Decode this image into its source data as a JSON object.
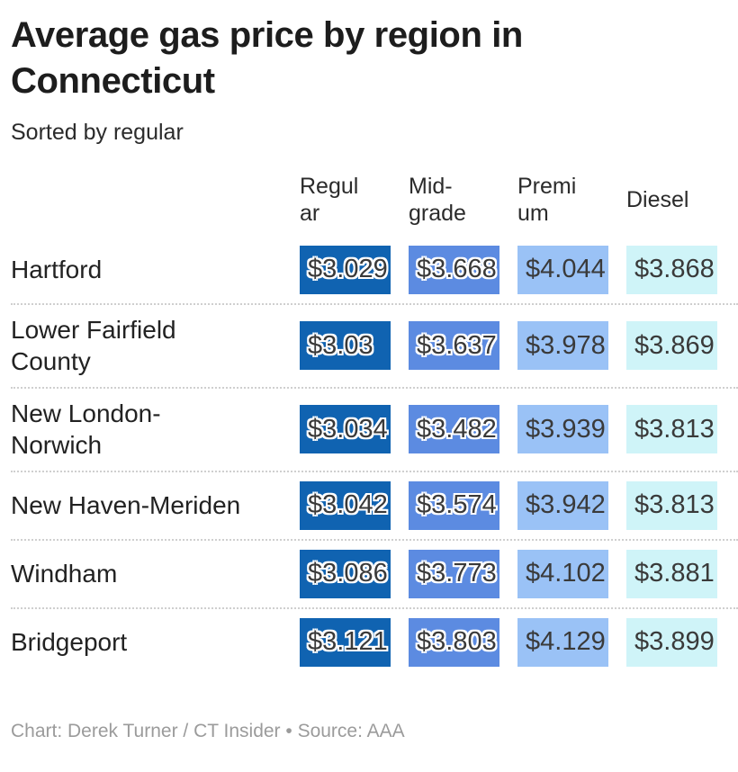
{
  "header": {
    "title": "Average gas price by region in Connecticut",
    "subtitle": "Sorted by regular"
  },
  "table": {
    "columns": [
      {
        "label": "Regul\nar",
        "name": "Regular",
        "color": "#1063b1",
        "halo": true
      },
      {
        "label": "Mid-\ngrade",
        "name": "Mid-grade",
        "color": "#5c8be1",
        "halo": true
      },
      {
        "label": "Premi\num",
        "name": "Premium",
        "color": "#9ac2f6",
        "halo": false
      },
      {
        "label": "Diesel",
        "name": "Diesel",
        "color": "#cff4f8",
        "halo": false
      }
    ],
    "rows": [
      {
        "region": "Hartford",
        "values": [
          "$3.029",
          "$3.668",
          "$4.044",
          "$3.868"
        ]
      },
      {
        "region": "Lower Fairfield\nCounty",
        "values": [
          "$3.03",
          "$3.637",
          "$3.978",
          "$3.869"
        ]
      },
      {
        "region": "New London-\nNorwich",
        "values": [
          "$3.034",
          "$3.482",
          "$3.939",
          "$3.813"
        ]
      },
      {
        "region": "New Haven-Meriden",
        "values": [
          "$3.042",
          "$3.574",
          "$3.942",
          "$3.813"
        ]
      },
      {
        "region": "Windham",
        "values": [
          "$3.086",
          "$3.773",
          "$4.102",
          "$3.881"
        ]
      },
      {
        "region": "Bridgeport",
        "values": [
          "$3.121",
          "$3.803",
          "$4.129",
          "$3.899"
        ]
      }
    ]
  },
  "footer": {
    "credit": "Chart: Derek Turner / CT Insider • Source: AAA"
  },
  "chart_data": {
    "type": "table",
    "title": "Average gas price by region in Connecticut",
    "subtitle": "Sorted by regular",
    "sorted_by": "Regular",
    "categories": [
      "Hartford",
      "Lower Fairfield County",
      "New London-Norwich",
      "New Haven-Meriden",
      "Windham",
      "Bridgeport"
    ],
    "series": [
      {
        "name": "Regular",
        "values": [
          3.029,
          3.03,
          3.034,
          3.042,
          3.086,
          3.121
        ]
      },
      {
        "name": "Mid-grade",
        "values": [
          3.668,
          3.637,
          3.482,
          3.574,
          3.773,
          3.803
        ]
      },
      {
        "name": "Premium",
        "values": [
          4.044,
          3.978,
          3.939,
          3.942,
          4.102,
          4.129
        ]
      },
      {
        "name": "Diesel",
        "values": [
          3.868,
          3.869,
          3.813,
          3.813,
          3.881,
          3.899
        ]
      }
    ],
    "cell_colors": {
      "Regular": "#1063b1",
      "Mid-grade": "#5c8be1",
      "Premium": "#9ac2f6",
      "Diesel": "#cff4f8"
    }
  }
}
